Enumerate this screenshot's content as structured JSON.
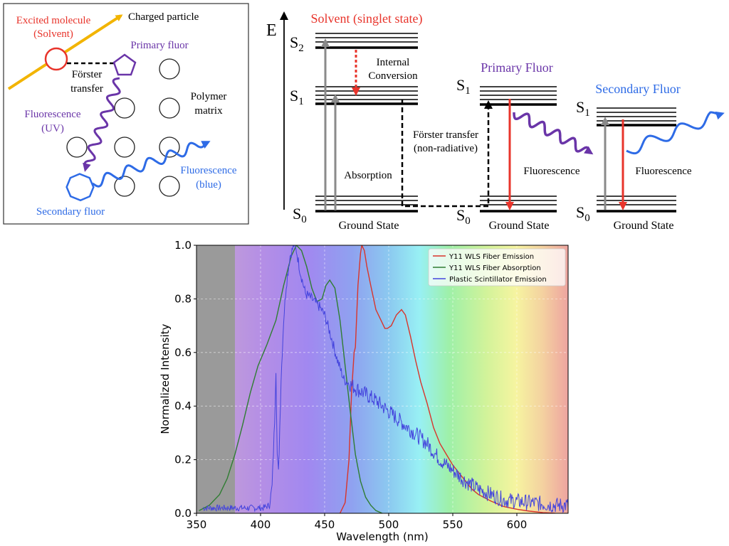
{
  "colors": {
    "solvent": "#e8342b",
    "primary": "#6a35a8",
    "secondary": "#2e6be6",
    "charged": "#f2b400",
    "gray_arrow": "#8a8a8a",
    "emission": "#d9342b",
    "absorption": "#2f7d32",
    "scint": "#4444dd"
  },
  "panel_a": {
    "excited_molecule": "Excited molecule",
    "solvent": "(Solvent)",
    "charged_particle": "Charged particle",
    "primary_fluor": "Primary fluor",
    "forster_line1": "Förster",
    "forster_line2": "transfer",
    "polymer_line1": "Polymer",
    "polymer_line2": "matrix",
    "fluor_uv_line1": "Fluorescence",
    "fluor_uv_line2": "(UV)",
    "fluor_blue_line1": "Fluorescence",
    "fluor_blue_line2": "(blue)",
    "secondary_fluor": "Secondary fluor"
  },
  "panel_b": {
    "energy_label": "E",
    "solvent_title": "Solvent (singlet state)",
    "primary_title": "Primary Fluor",
    "secondary_title": "Secondary Fluor",
    "s2": "S",
    "s2_sub": "2",
    "s1": "S",
    "s1_sub": "1",
    "s0": "S",
    "s0_sub": "0",
    "internal_line1": "Internal",
    "internal_line2": "Conversion",
    "forster_line1": "Förster transfer",
    "forster_line2": "(non-radiative)",
    "absorption": "Absorption",
    "fluorescence": "Fluorescence",
    "ground_state": "Ground State"
  },
  "chart_data": {
    "type": "line",
    "title": "",
    "xlabel": "Wavelength (nm)",
    "ylabel": "Normalized Intensity",
    "xlim": [
      350,
      640
    ],
    "ylim": [
      0,
      1.0
    ],
    "xticks": [
      "350",
      "400",
      "450",
      "500",
      "550",
      "600"
    ],
    "xtick_values": [
      350,
      400,
      450,
      500,
      550,
      600
    ],
    "yticks": [
      "0.0",
      "0.2",
      "0.4",
      "0.6",
      "0.8",
      "1.0"
    ],
    "ytick_values": [
      0,
      0.2,
      0.4,
      0.6,
      0.8,
      1.0
    ],
    "grid": true,
    "legend_position": "top-right",
    "series": [
      {
        "name": "Y11 WLS Fiber Emission",
        "color": "#d9342b",
        "points": [
          [
            462,
            0
          ],
          [
            466,
            0.04
          ],
          [
            469,
            0.2
          ],
          [
            471,
            0.45
          ],
          [
            473,
            0.6
          ],
          [
            474,
            0.62
          ],
          [
            476,
            0.85
          ],
          [
            478,
            0.97
          ],
          [
            479,
            1.0
          ],
          [
            481,
            0.98
          ],
          [
            483,
            0.92
          ],
          [
            486,
            0.85
          ],
          [
            490,
            0.76
          ],
          [
            494,
            0.72
          ],
          [
            497,
            0.69
          ],
          [
            499,
            0.69
          ],
          [
            502,
            0.7
          ],
          [
            506,
            0.74
          ],
          [
            510,
            0.76
          ],
          [
            513,
            0.74
          ],
          [
            517,
            0.66
          ],
          [
            521,
            0.57
          ],
          [
            525,
            0.49
          ],
          [
            530,
            0.41
          ],
          [
            535,
            0.32
          ],
          [
            540,
            0.26
          ],
          [
            545,
            0.22
          ],
          [
            550,
            0.18
          ],
          [
            555,
            0.15
          ],
          [
            560,
            0.12
          ],
          [
            565,
            0.09
          ],
          [
            570,
            0.07
          ],
          [
            580,
            0.045
          ],
          [
            590,
            0.025
          ],
          [
            600,
            0.015
          ],
          [
            610,
            0.008
          ],
          [
            620,
            0.003
          ],
          [
            630,
            0
          ]
        ]
      },
      {
        "name": "Y11 WLS Fiber Absorption",
        "color": "#2f7d32",
        "points": [
          [
            352,
            0.01
          ],
          [
            360,
            0.03
          ],
          [
            368,
            0.07
          ],
          [
            374,
            0.13
          ],
          [
            380,
            0.22
          ],
          [
            386,
            0.33
          ],
          [
            392,
            0.45
          ],
          [
            398,
            0.55
          ],
          [
            405,
            0.63
          ],
          [
            412,
            0.72
          ],
          [
            418,
            0.85
          ],
          [
            424,
            0.96
          ],
          [
            428,
            1.0
          ],
          [
            432,
            0.98
          ],
          [
            436,
            0.92
          ],
          [
            440,
            0.84
          ],
          [
            444,
            0.79
          ],
          [
            448,
            0.8
          ],
          [
            451,
            0.85
          ],
          [
            454,
            0.87
          ],
          [
            458,
            0.84
          ],
          [
            462,
            0.72
          ],
          [
            466,
            0.55
          ],
          [
            470,
            0.38
          ],
          [
            474,
            0.22
          ],
          [
            478,
            0.12
          ],
          [
            482,
            0.06
          ],
          [
            486,
            0.03
          ],
          [
            490,
            0.01
          ],
          [
            495,
            0
          ]
        ]
      },
      {
        "name": "Plastic Scintillator Emission",
        "color": "#4444dd",
        "noisy": true,
        "points": [
          [
            355,
            0.02
          ],
          [
            370,
            0.02
          ],
          [
            390,
            0.02
          ],
          [
            402,
            0.02
          ],
          [
            407,
            0.03
          ],
          [
            409,
            0.1
          ],
          [
            411,
            0.35
          ],
          [
            412,
            0.54
          ],
          [
            413,
            0.22
          ],
          [
            414,
            0.15
          ],
          [
            416,
            0.5
          ],
          [
            418,
            0.72
          ],
          [
            420,
            0.85
          ],
          [
            423,
            0.96
          ],
          [
            426,
            1.0
          ],
          [
            428,
            0.98
          ],
          [
            431,
            0.9
          ],
          [
            435,
            0.82
          ],
          [
            440,
            0.8
          ],
          [
            446,
            0.77
          ],
          [
            450,
            0.74
          ],
          [
            455,
            0.66
          ],
          [
            460,
            0.57
          ],
          [
            465,
            0.5
          ],
          [
            470,
            0.48
          ],
          [
            480,
            0.45
          ],
          [
            490,
            0.42
          ],
          [
            500,
            0.38
          ],
          [
            510,
            0.34
          ],
          [
            520,
            0.3
          ],
          [
            530,
            0.26
          ],
          [
            540,
            0.2
          ],
          [
            550,
            0.16
          ],
          [
            560,
            0.12
          ],
          [
            570,
            0.09
          ],
          [
            580,
            0.07
          ],
          [
            590,
            0.05
          ],
          [
            600,
            0.045
          ],
          [
            610,
            0.04
          ],
          [
            620,
            0.035
          ],
          [
            630,
            0.03
          ],
          [
            640,
            0.03
          ]
        ]
      }
    ]
  }
}
